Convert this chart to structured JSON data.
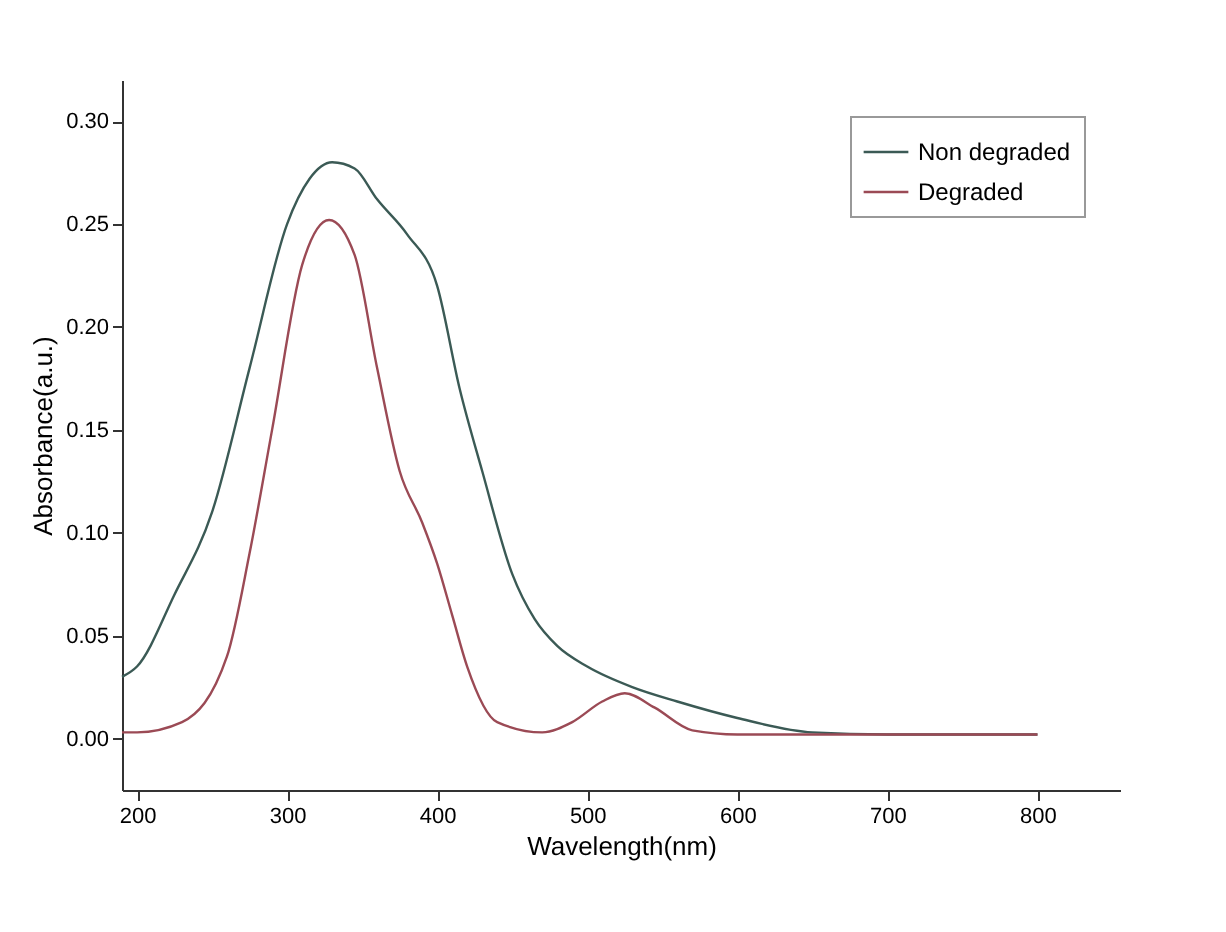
{
  "chart_data": {
    "type": "line",
    "xlabel": "Wavelength(nm)",
    "ylabel": "Absorbance(a.u.)",
    "xlim": [
      190,
      855
    ],
    "ylim": [
      -0.025,
      0.32
    ],
    "xticks": [
      200,
      300,
      400,
      500,
      600,
      700,
      800
    ],
    "yticks": [
      {
        "value": 0,
        "label": "0.00"
      },
      {
        "value": 0.05,
        "label": "0.05"
      },
      {
        "value": 0.1,
        "label": "0.10"
      },
      {
        "value": 0.15,
        "label": "0.15"
      },
      {
        "value": 0.2,
        "label": "0.20"
      },
      {
        "value": 0.25,
        "label": "0.25"
      },
      {
        "value": 0.3,
        "label": "0.30"
      }
    ],
    "legend": "top right",
    "grid": false,
    "marker": "none",
    "line_style": "solid",
    "series": [
      {
        "name": "Non degraded",
        "color": "#3b5a55",
        "x": [
          190,
          200,
          225,
          250,
          275,
          300,
          315,
          330,
          345,
          360,
          380,
          400,
          415,
          430,
          450,
          465,
          480,
          500,
          530,
          560,
          600,
          650,
          700,
          800
        ],
        "values": [
          0.03,
          0.035,
          0.07,
          0.11,
          0.18,
          0.25,
          0.272,
          0.28,
          0.277,
          0.262,
          0.245,
          0.22,
          0.17,
          0.13,
          0.08,
          0.058,
          0.045,
          0.035,
          0.025,
          0.018,
          0.01,
          0.003,
          0.002,
          0.002
        ]
      },
      {
        "name": "Degraded",
        "color": "#9b4a55",
        "x": [
          190,
          200,
          230,
          260,
          275,
          290,
          310,
          328,
          345,
          360,
          375,
          390,
          400,
          410,
          420,
          440,
          470,
          490,
          510,
          525,
          545,
          570,
          600,
          800
        ],
        "values": [
          0.003,
          0.003,
          0.008,
          0.04,
          0.09,
          0.15,
          0.23,
          0.252,
          0.235,
          0.18,
          0.13,
          0.105,
          0.085,
          0.06,
          0.035,
          0.008,
          0.003,
          0.008,
          0.018,
          0.022,
          0.015,
          0.004,
          0.002,
          0.002
        ]
      }
    ]
  }
}
